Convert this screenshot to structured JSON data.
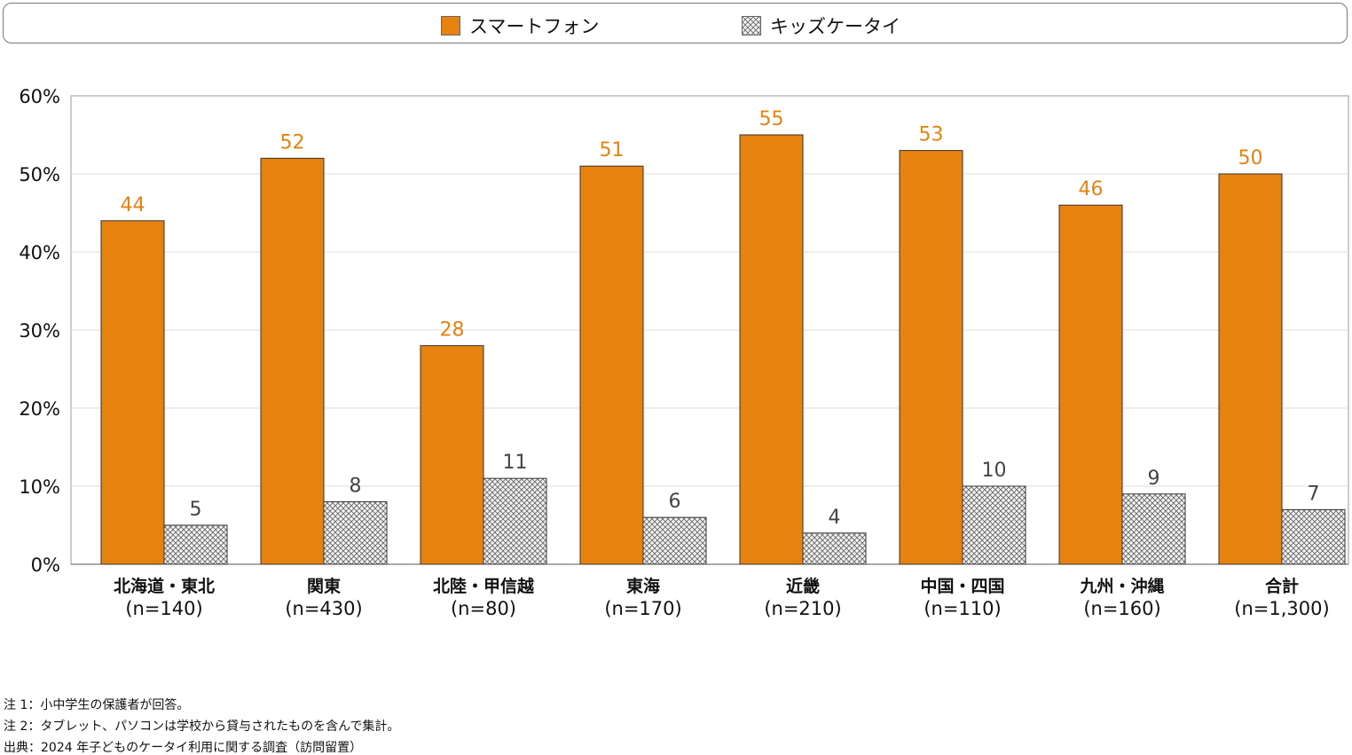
{
  "chart_data": {
    "type": "bar",
    "categories": [
      "北海道・東北",
      "関東",
      "北陸・甲信越",
      "東海",
      "近畿",
      "中国・四国",
      "九州・沖縄",
      "合計"
    ],
    "category_n": [
      "(n=140)",
      "(n=430)",
      "(n=80)",
      "(n=170)",
      "(n=210)",
      "(n=110)",
      "(n=160)",
      "(n=1,300)"
    ],
    "series": [
      {
        "name": "スマートフォン",
        "values": [
          44,
          52,
          28,
          51,
          55,
          53,
          46,
          50
        ],
        "color": "#E8820E"
      },
      {
        "name": "キッズケータイ",
        "values": [
          5,
          8,
          11,
          6,
          4,
          10,
          9,
          7
        ],
        "color": "#888888",
        "pattern": "crosshatch"
      }
    ],
    "yticks": [
      "0%",
      "10%",
      "20%",
      "30%",
      "40%",
      "50%",
      "60%"
    ],
    "ylim": [
      0,
      60
    ],
    "grid": true,
    "legend": "top-center"
  },
  "notes": [
    "注 1：小中学生の保護者が回答。",
    "注 2：タブレット、パソコンは学校から貸与されたものを含んで集計。",
    "出典：2024 年子どものケータイ利用に関する調査（訪問留置）"
  ]
}
